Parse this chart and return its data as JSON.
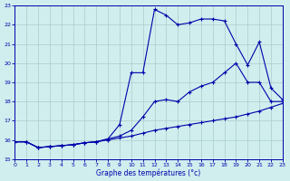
{
  "xlabel": "Graphe des températures (°c)",
  "bg_color": "#d0eeee",
  "line_color": "#0000aa",
  "grid_color": "#aacccc",
  "xlim": [
    0,
    23
  ],
  "ylim": [
    15,
    23
  ],
  "xticks": [
    0,
    1,
    2,
    3,
    4,
    5,
    6,
    7,
    8,
    9,
    10,
    11,
    12,
    13,
    14,
    15,
    16,
    17,
    18,
    19,
    20,
    21,
    22,
    23
  ],
  "yticks": [
    15,
    16,
    17,
    18,
    19,
    20,
    21,
    22,
    23
  ],
  "series1_x": [
    0,
    1,
    2,
    3,
    4,
    5,
    6,
    7,
    8,
    9,
    10,
    11,
    12,
    13,
    14,
    15,
    16,
    17,
    18,
    19,
    20,
    21,
    22,
    23
  ],
  "series1_y": [
    15.9,
    15.9,
    15.6,
    15.65,
    15.7,
    15.75,
    15.85,
    15.9,
    16.0,
    16.1,
    16.2,
    16.35,
    16.5,
    16.6,
    16.7,
    16.8,
    16.9,
    17.0,
    17.1,
    17.2,
    17.35,
    17.5,
    17.7,
    17.9
  ],
  "series2_x": [
    0,
    1,
    2,
    3,
    4,
    5,
    6,
    7,
    8,
    9,
    10,
    11,
    12,
    13,
    14,
    15,
    16,
    17,
    18,
    19,
    20,
    21,
    22,
    23
  ],
  "series2_y": [
    15.9,
    15.9,
    15.6,
    15.65,
    15.7,
    15.75,
    15.85,
    15.9,
    16.05,
    16.2,
    16.5,
    17.2,
    18.0,
    18.1,
    18.0,
    18.5,
    18.8,
    19.0,
    19.5,
    20.0,
    19.0,
    19.0,
    18.0,
    18.0
  ],
  "series3_x": [
    0,
    1,
    2,
    3,
    4,
    5,
    6,
    7,
    8,
    9,
    10,
    11,
    12,
    13,
    14,
    15,
    16,
    17,
    18,
    19,
    20,
    21,
    22,
    23
  ],
  "series3_y": [
    15.9,
    15.9,
    15.6,
    15.65,
    15.7,
    15.75,
    15.85,
    15.9,
    16.05,
    16.8,
    19.5,
    19.5,
    22.8,
    22.5,
    22.0,
    22.1,
    22.3,
    22.3,
    22.2,
    21.0,
    19.9,
    21.1,
    18.7,
    18.1
  ]
}
